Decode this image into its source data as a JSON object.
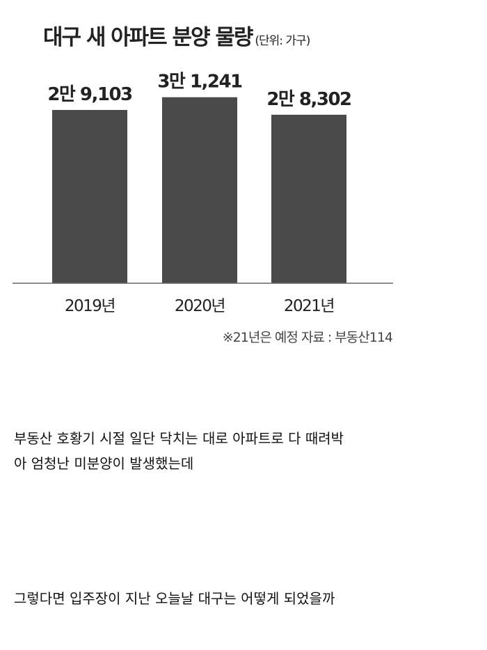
{
  "chart_data": {
    "type": "bar",
    "title": "대구 새 아파트 분양 물량",
    "unit": "(단위: 가구)",
    "categories": [
      "2019년",
      "2020년",
      "2021년"
    ],
    "values": [
      29103,
      31241,
      28302
    ],
    "data_labels": [
      "2만 9,103",
      "3만 1,241",
      "2만 8,302"
    ],
    "bar_color": "#4a4a4a",
    "grid": false,
    "note": "※21년은 예정 자료 : 부동산114"
  },
  "post": {
    "paragraph1_line1": "부동산 호황기 시절 일단 닥치는 대로 아파트로 다 때려박",
    "paragraph1_line2": "아 엄청난 미분양이 발생했는데",
    "paragraph2": "그렇다면 입주장이 지난 오늘날 대구는 어떻게 되었을까"
  }
}
